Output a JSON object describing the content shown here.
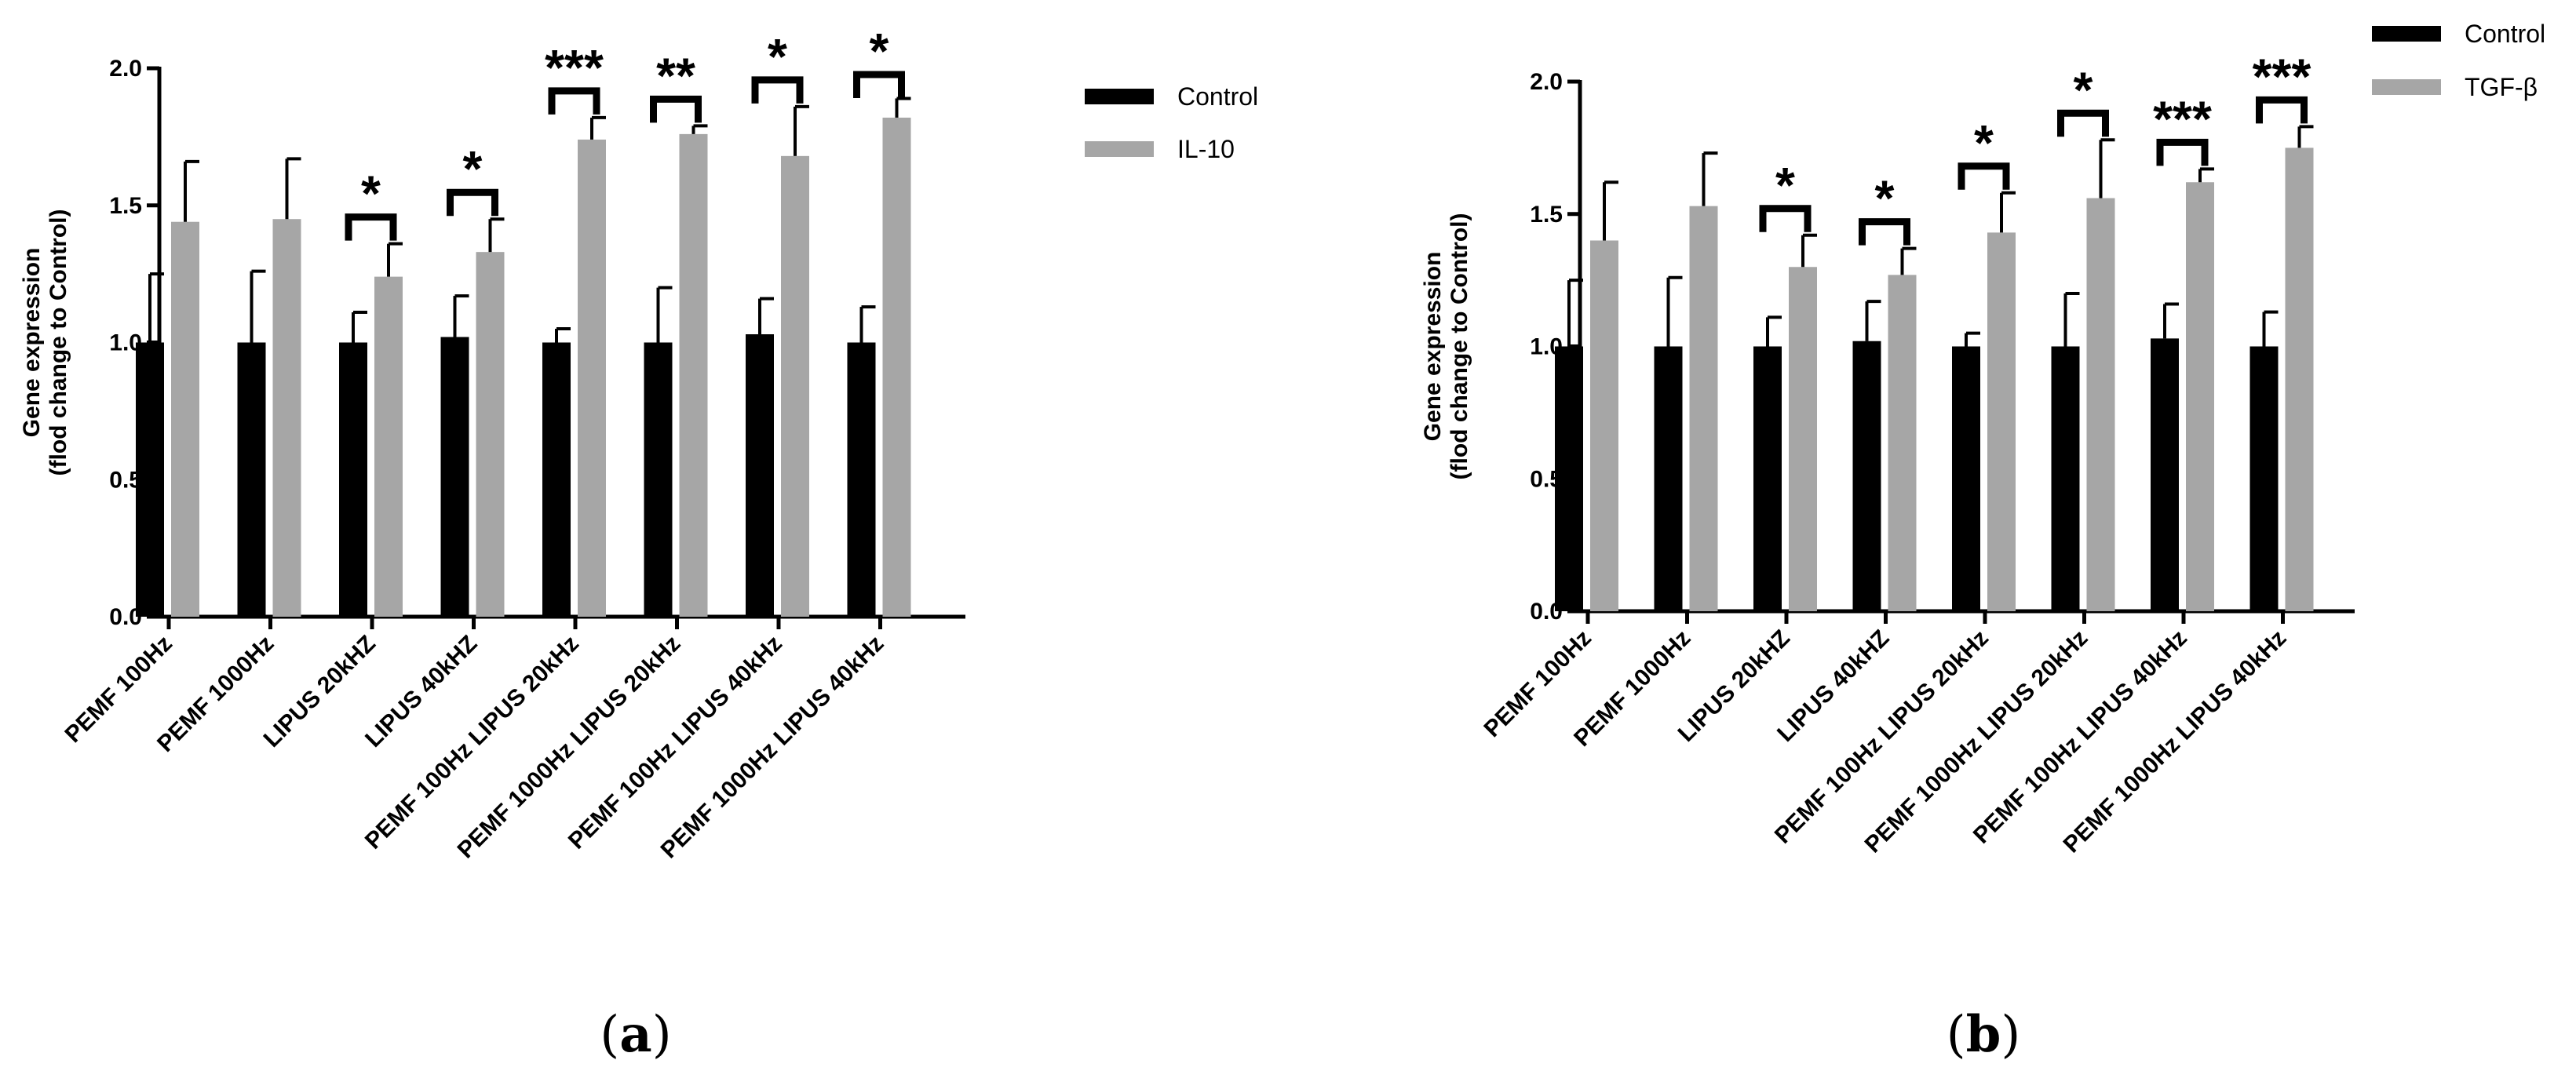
{
  "chart_data": [
    {
      "type": "bar",
      "panel_label": "a",
      "categories": [
        "PEMF 100Hz",
        "PEMF 1000Hz",
        "LIPUS 20kHZ",
        "LIPUS 40kHZ",
        "PEMF 100Hz LIPUS 20kHz",
        "PEMF 1000Hz LIPUS 20kHz",
        "PEMF 100Hz LIPUS 40kHz",
        "PEMF 1000Hz LIPUS 40kHz"
      ],
      "series": [
        {
          "name": "Control",
          "color": "#000000",
          "values": [
            1.0,
            1.0,
            1.0,
            1.02,
            1.0,
            1.0,
            1.03,
            1.0
          ],
          "errors": [
            0.25,
            0.26,
            0.11,
            0.15,
            0.05,
            0.2,
            0.13,
            0.13
          ]
        },
        {
          "name": "IL-10",
          "color": "#a6a6a6",
          "values": [
            1.44,
            1.45,
            1.24,
            1.33,
            1.74,
            1.76,
            1.68,
            1.82
          ],
          "errors": [
            0.22,
            0.22,
            0.12,
            0.12,
            0.08,
            0.03,
            0.18,
            0.07
          ]
        }
      ],
      "significance": [
        "",
        "",
        "*",
        "*",
        "***",
        "**",
        "*",
        "*"
      ],
      "ylabel": [
        "Gene expression",
        "(flod change to Control)"
      ],
      "ylim": [
        0,
        2.0
      ],
      "yticks": [
        "0.0",
        "0.5",
        "1.0",
        "1.5",
        "2.0"
      ],
      "yticks_values": [
        0,
        0.5,
        1.0,
        1.5,
        2.0
      ],
      "legend_position": "top-right"
    },
    {
      "type": "bar",
      "panel_label": "b",
      "categories": [
        "PEMF 100Hz",
        "PEMF 1000Hz",
        "LIPUS 20kHZ",
        "LIPUS 40kHZ",
        "PEMF 100Hz LIPUS 20kHz",
        "PEMF 1000Hz LIPUS 20kHz",
        "PEMF 100Hz LIPUS 40kHz",
        "PEMF 1000Hz LIPUS 40kHz"
      ],
      "series": [
        {
          "name": "Control",
          "color": "#000000",
          "values": [
            1.0,
            1.0,
            1.0,
            1.02,
            1.0,
            1.0,
            1.03,
            1.0
          ],
          "errors": [
            0.25,
            0.26,
            0.11,
            0.15,
            0.05,
            0.2,
            0.13,
            0.13
          ]
        },
        {
          "name": "TGF-β",
          "color": "#a6a6a6",
          "values": [
            1.4,
            1.53,
            1.3,
            1.27,
            1.43,
            1.56,
            1.62,
            1.75
          ],
          "errors": [
            0.22,
            0.2,
            0.12,
            0.1,
            0.15,
            0.22,
            0.05,
            0.08
          ]
        }
      ],
      "significance": [
        "",
        "",
        "*",
        "*",
        "*",
        "*",
        "***",
        "***"
      ],
      "ylabel": [
        "Gene expression",
        "(flod change to Control)"
      ],
      "ylim": [
        0,
        2.0
      ],
      "yticks": [
        "0.0",
        "0.5",
        "1.0",
        "1.5",
        "2.0"
      ],
      "yticks_values": [
        0,
        0.5,
        1.0,
        1.5,
        2.0
      ],
      "legend_position": "top-right"
    }
  ]
}
